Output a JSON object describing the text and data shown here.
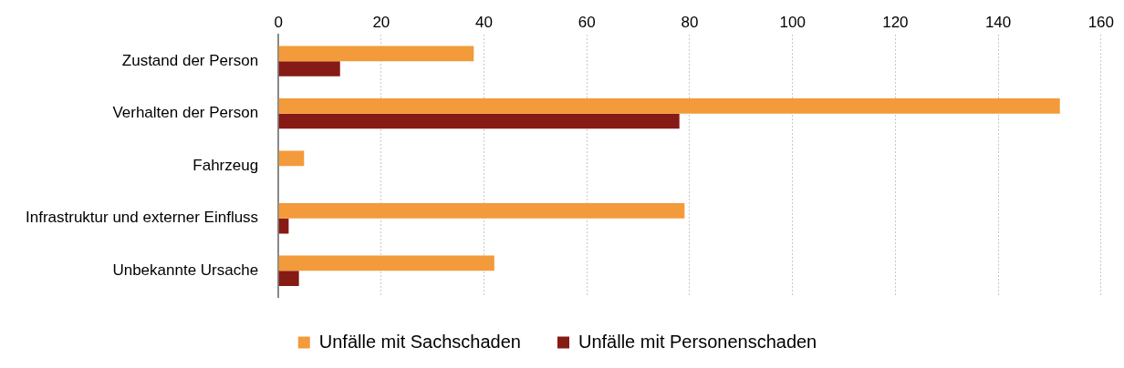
{
  "chart_data": {
    "type": "bar",
    "orientation": "horizontal",
    "categories": [
      "Zustand der Person",
      "Verhalten der Person",
      "Fahrzeug",
      "Infrastruktur und externer Einfluss",
      "Unbekannte Ursache"
    ],
    "series": [
      {
        "name": "Unfälle mit Sachschaden",
        "color": "#f39a3a",
        "values": [
          38,
          152,
          5,
          79,
          42
        ]
      },
      {
        "name": "Unfälle mit Personenschaden",
        "color": "#861a14",
        "values": [
          12,
          78,
          0,
          2,
          4
        ]
      }
    ],
    "xlim": [
      0,
      160
    ],
    "xticks": [
      0,
      20,
      40,
      60,
      80,
      100,
      120,
      140,
      160
    ],
    "grid": "x",
    "legend": "bottom"
  }
}
